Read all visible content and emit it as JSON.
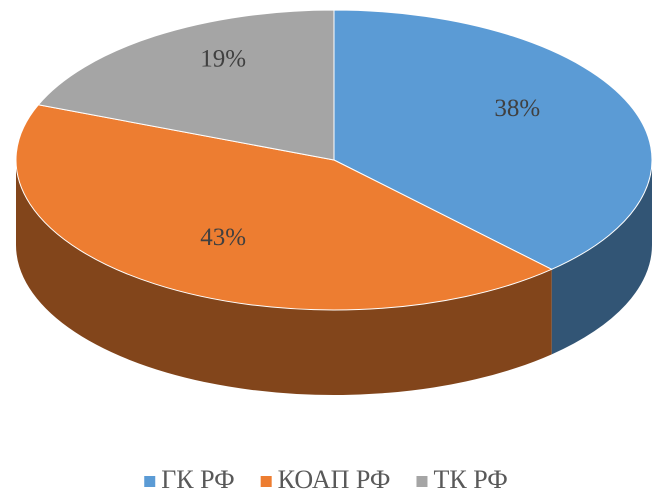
{
  "chart_data": {
    "type": "pie3d",
    "categories": [
      "ГК РФ",
      "КОАП РФ",
      "ТК РФ"
    ],
    "values": [
      38,
      43,
      19
    ],
    "value_labels": [
      "38%",
      "43%",
      "19%"
    ],
    "colors": [
      "#5b9bd5",
      "#ed7d31",
      "#a5a5a5"
    ],
    "legend": "bottom"
  }
}
